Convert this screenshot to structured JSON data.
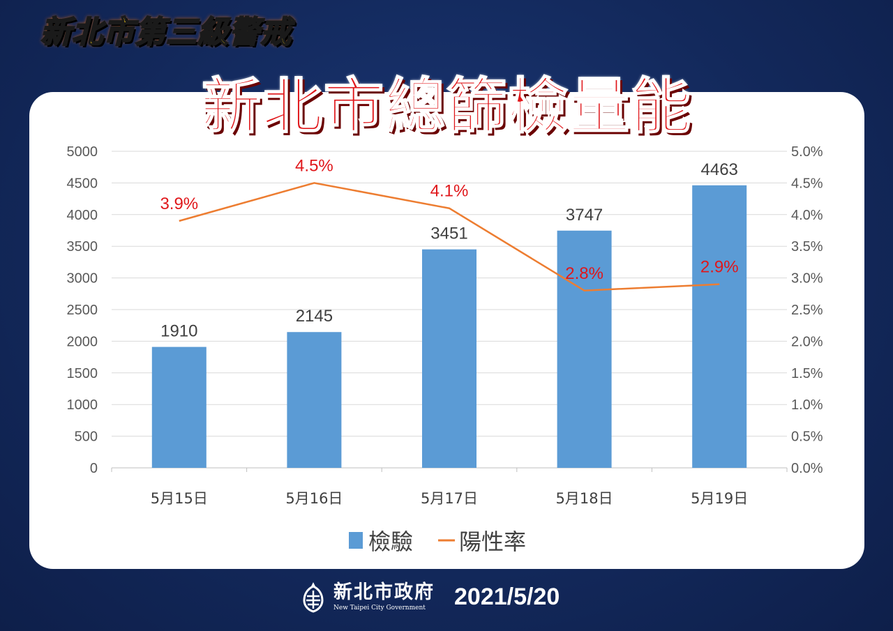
{
  "header": {
    "banner": "新北市第三級警戒",
    "title": "新北市總篩檢量能"
  },
  "chart_data": {
    "type": "bar",
    "categories": [
      "5月15日",
      "5月16日",
      "5月17日",
      "5月18日",
      "5月19日"
    ],
    "series": [
      {
        "name": "檢驗",
        "type": "bar",
        "axis": "left",
        "values": [
          1910,
          2145,
          3451,
          3747,
          4463
        ],
        "color": "#5b9bd5"
      },
      {
        "name": "陽性率",
        "type": "line",
        "axis": "right",
        "values": [
          3.9,
          4.5,
          4.1,
          2.8,
          2.9
        ],
        "labels": [
          "3.9%",
          "4.5%",
          "4.1%",
          "2.8%",
          "2.9%"
        ],
        "color": "#ed7d31"
      }
    ],
    "ylim": [
      0,
      5000
    ],
    "yticks": [
      "0",
      "500",
      "1000",
      "1500",
      "2000",
      "2500",
      "3000",
      "3500",
      "4000",
      "4500",
      "5000"
    ],
    "y2lim": [
      0,
      5.0
    ],
    "y2ticks": [
      "0.0%",
      "0.5%",
      "1.0%",
      "1.5%",
      "2.0%",
      "2.5%",
      "3.0%",
      "3.5%",
      "4.0%",
      "4.5%",
      "5.0%"
    ],
    "grid": true,
    "legend": "bottom",
    "bar_label_color": "#404040",
    "line_label_color": "#e0171b"
  },
  "footer": {
    "org_name": "新北市政府",
    "org_name_en": "New Taipei City Government",
    "date": "2021/5/20"
  }
}
